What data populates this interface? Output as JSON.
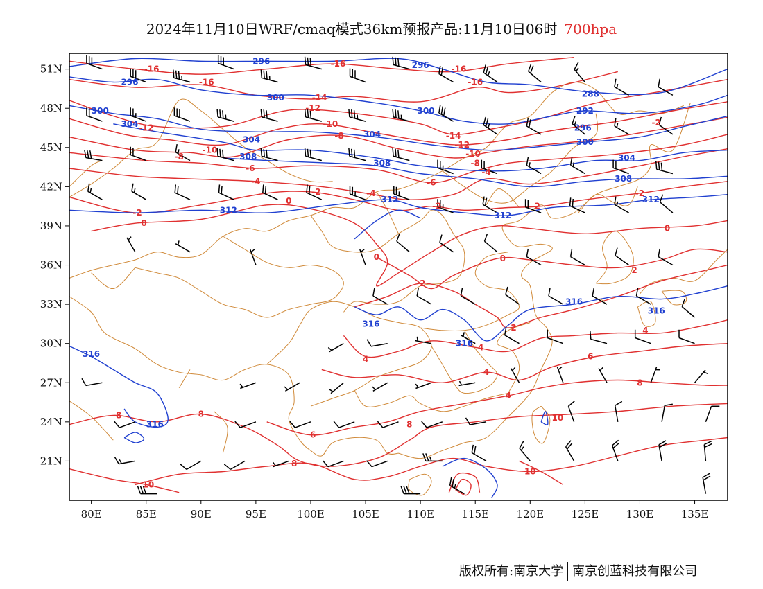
{
  "title": "2024年11月10日WRF/cmaq模式36km预报产品:11月10日06时",
  "level": "700hpa",
  "copyright": {
    "owner": "版权所有:南京大学",
    "company": "南京创蓝科技有限公司"
  },
  "colors": {
    "temperature": "#e03030",
    "geopotential": "#2040d0",
    "boundaries": "#d08a3a",
    "wind": "#000000"
  },
  "axes": {
    "lon_labels": [
      "80E",
      "85E",
      "90E",
      "95E",
      "100E",
      "105E",
      "110E",
      "115E",
      "120E",
      "125E",
      "130E",
      "135E"
    ],
    "lat_labels": [
      "51N",
      "48N",
      "45N",
      "42N",
      "39N",
      "36N",
      "33N",
      "30N",
      "27N",
      "24N",
      "21N"
    ]
  },
  "temperature_labels": [
    {
      "text": "-16",
      "lon": 85.5,
      "lat": 51.0
    },
    {
      "text": "-16",
      "lon": 90.5,
      "lat": 50.0
    },
    {
      "text": "-16",
      "lon": 102.5,
      "lat": 51.4
    },
    {
      "text": "-16",
      "lon": 113.5,
      "lat": 51.0
    },
    {
      "text": "-16",
      "lon": 115.0,
      "lat": 50.0
    },
    {
      "text": "-14",
      "lon": 100.8,
      "lat": 48.8
    },
    {
      "text": "-12",
      "lon": 100.2,
      "lat": 48.0
    },
    {
      "text": "-12",
      "lon": 85.0,
      "lat": 46.5
    },
    {
      "text": "-10",
      "lon": 101.8,
      "lat": 46.8
    },
    {
      "text": "-8",
      "lon": 102.6,
      "lat": 45.9
    },
    {
      "text": "-14",
      "lon": 113.0,
      "lat": 45.9
    },
    {
      "text": "-12",
      "lon": 113.8,
      "lat": 45.2
    },
    {
      "text": "-10",
      "lon": 114.8,
      "lat": 44.5
    },
    {
      "text": "-8",
      "lon": 115.0,
      "lat": 43.8
    },
    {
      "text": "-10",
      "lon": 90.8,
      "lat": 44.8
    },
    {
      "text": "-8",
      "lon": 88.0,
      "lat": 44.3
    },
    {
      "text": "-6",
      "lon": 94.5,
      "lat": 43.4
    },
    {
      "text": "-4",
      "lon": 95.0,
      "lat": 42.4
    },
    {
      "text": "-6",
      "lon": 111.0,
      "lat": 42.3
    },
    {
      "text": "-4",
      "lon": 116.0,
      "lat": 43.1
    },
    {
      "text": "-4",
      "lon": 105.5,
      "lat": 41.5
    },
    {
      "text": "-2",
      "lon": 100.5,
      "lat": 41.6
    },
    {
      "text": "-2",
      "lon": 84.2,
      "lat": 40.0
    },
    {
      "text": "0",
      "lon": 98.0,
      "lat": 40.9
    },
    {
      "text": "0",
      "lon": 84.8,
      "lat": 39.2
    },
    {
      "text": "-2",
      "lon": 111.5,
      "lat": 40.5
    },
    {
      "text": "-2",
      "lon": 120.5,
      "lat": 40.5
    },
    {
      "text": "-2",
      "lon": 130.0,
      "lat": 41.5
    },
    {
      "text": "-2",
      "lon": 131.5,
      "lat": 46.9
    },
    {
      "text": "0",
      "lon": 106.0,
      "lat": 36.6
    },
    {
      "text": "0",
      "lon": 117.5,
      "lat": 36.5
    },
    {
      "text": "0",
      "lon": 132.5,
      "lat": 38.8
    },
    {
      "text": "2",
      "lon": 110.2,
      "lat": 34.6
    },
    {
      "text": "2",
      "lon": 118.5,
      "lat": 31.2
    },
    {
      "text": "2",
      "lon": 129.5,
      "lat": 35.6
    },
    {
      "text": "4",
      "lon": 105.0,
      "lat": 28.8
    },
    {
      "text": "4",
      "lon": 115.5,
      "lat": 29.7
    },
    {
      "text": "4",
      "lon": 116.0,
      "lat": 27.8
    },
    {
      "text": "4",
      "lon": 118.0,
      "lat": 26.0
    },
    {
      "text": "4",
      "lon": 130.5,
      "lat": 31.0
    },
    {
      "text": "6",
      "lon": 100.2,
      "lat": 23.0
    },
    {
      "text": "6",
      "lon": 125.5,
      "lat": 29.0
    },
    {
      "text": "8",
      "lon": 82.5,
      "lat": 24.5
    },
    {
      "text": "8",
      "lon": 90.0,
      "lat": 24.6
    },
    {
      "text": "8",
      "lon": 109.0,
      "lat": 23.8
    },
    {
      "text": "8",
      "lon": 98.5,
      "lat": 20.8
    },
    {
      "text": "8",
      "lon": 130.0,
      "lat": 27.0
    },
    {
      "text": "10",
      "lon": 122.5,
      "lat": 24.3
    },
    {
      "text": "10",
      "lon": 85.2,
      "lat": 19.2
    },
    {
      "text": "10",
      "lon": 120.0,
      "lat": 20.2
    }
  ],
  "geopotential_labels": [
    {
      "text": "296",
      "lon": 95.5,
      "lat": 51.6
    },
    {
      "text": "296",
      "lon": 110.0,
      "lat": 51.3
    },
    {
      "text": "296",
      "lon": 83.5,
      "lat": 50.0
    },
    {
      "text": "300",
      "lon": 80.8,
      "lat": 47.8
    },
    {
      "text": "300",
      "lon": 96.8,
      "lat": 48.8
    },
    {
      "text": "300",
      "lon": 110.5,
      "lat": 47.8
    },
    {
      "text": "304",
      "lon": 83.5,
      "lat": 46.8
    },
    {
      "text": "304",
      "lon": 94.6,
      "lat": 45.6
    },
    {
      "text": "304",
      "lon": 105.6,
      "lat": 46.0
    },
    {
      "text": "308",
      "lon": 94.3,
      "lat": 44.3
    },
    {
      "text": "308",
      "lon": 106.5,
      "lat": 43.8
    },
    {
      "text": "288",
      "lon": 125.5,
      "lat": 49.1
    },
    {
      "text": "292",
      "lon": 125.0,
      "lat": 47.8
    },
    {
      "text": "296",
      "lon": 124.8,
      "lat": 46.5
    },
    {
      "text": "300",
      "lon": 125.0,
      "lat": 45.4
    },
    {
      "text": "304",
      "lon": 128.8,
      "lat": 44.2
    },
    {
      "text": "308",
      "lon": 128.5,
      "lat": 42.6
    },
    {
      "text": "312",
      "lon": 92.5,
      "lat": 40.2
    },
    {
      "text": "312",
      "lon": 107.2,
      "lat": 41.0
    },
    {
      "text": "312",
      "lon": 117.5,
      "lat": 39.8
    },
    {
      "text": "312",
      "lon": 131.0,
      "lat": 41.0
    },
    {
      "text": "316",
      "lon": 105.5,
      "lat": 31.5
    },
    {
      "text": "316",
      "lon": 114.0,
      "lat": 30.0
    },
    {
      "text": "316",
      "lon": 124.0,
      "lat": 33.2
    },
    {
      "text": "316",
      "lon": 131.5,
      "lat": 32.5
    },
    {
      "text": "316",
      "lon": 80.0,
      "lat": 29.2
    },
    {
      "text": "316",
      "lon": 85.8,
      "lat": 23.8
    }
  ],
  "wind_barbs": [
    {
      "lon": 81,
      "lat": 51,
      "spd": 30,
      "dir": 290
    },
    {
      "lon": 85,
      "lat": 50,
      "spd": 30,
      "dir": 290
    },
    {
      "lon": 89,
      "lat": 50,
      "spd": 35,
      "dir": 285
    },
    {
      "lon": 93,
      "lat": 51,
      "spd": 30,
      "dir": 290
    },
    {
      "lon": 97,
      "lat": 50,
      "spd": 35,
      "dir": 285
    },
    {
      "lon": 101,
      "lat": 51,
      "spd": 30,
      "dir": 285
    },
    {
      "lon": 105,
      "lat": 50,
      "spd": 30,
      "dir": 290
    },
    {
      "lon": 109,
      "lat": 51,
      "spd": 30,
      "dir": 285
    },
    {
      "lon": 113,
      "lat": 50,
      "spd": 20,
      "dir": 300
    },
    {
      "lon": 117,
      "lat": 50,
      "spd": 25,
      "dir": 305
    },
    {
      "lon": 121,
      "lat": 50,
      "spd": 20,
      "dir": 310
    },
    {
      "lon": 125,
      "lat": 50,
      "spd": 15,
      "dir": 320
    },
    {
      "lon": 129,
      "lat": 49,
      "spd": 15,
      "dir": 300
    },
    {
      "lon": 133,
      "lat": 49,
      "spd": 10,
      "dir": 300
    },
    {
      "lon": 81,
      "lat": 47,
      "spd": 20,
      "dir": 290
    },
    {
      "lon": 85,
      "lat": 47,
      "spd": 25,
      "dir": 290
    },
    {
      "lon": 89,
      "lat": 47,
      "spd": 30,
      "dir": 290
    },
    {
      "lon": 93,
      "lat": 47,
      "spd": 35,
      "dir": 285
    },
    {
      "lon": 97,
      "lat": 47,
      "spd": 30,
      "dir": 285
    },
    {
      "lon": 101,
      "lat": 47,
      "spd": 30,
      "dir": 285
    },
    {
      "lon": 105,
      "lat": 47,
      "spd": 35,
      "dir": 285
    },
    {
      "lon": 109,
      "lat": 47,
      "spd": 35,
      "dir": 285
    },
    {
      "lon": 113,
      "lat": 47,
      "spd": 30,
      "dir": 300
    },
    {
      "lon": 117,
      "lat": 46,
      "spd": 25,
      "dir": 305
    },
    {
      "lon": 121,
      "lat": 46,
      "spd": 20,
      "dir": 300
    },
    {
      "lon": 125,
      "lat": 46,
      "spd": 15,
      "dir": 310
    },
    {
      "lon": 129,
      "lat": 46,
      "spd": 15,
      "dir": 300
    },
    {
      "lon": 133,
      "lat": 46,
      "spd": 10,
      "dir": 305
    },
    {
      "lon": 81,
      "lat": 44,
      "spd": 30,
      "dir": 280
    },
    {
      "lon": 85,
      "lat": 44,
      "spd": 20,
      "dir": 290
    },
    {
      "lon": 89,
      "lat": 44,
      "spd": 15,
      "dir": 300
    },
    {
      "lon": 93,
      "lat": 44,
      "spd": 30,
      "dir": 285
    },
    {
      "lon": 97,
      "lat": 44,
      "spd": 30,
      "dir": 285
    },
    {
      "lon": 101,
      "lat": 44,
      "spd": 30,
      "dir": 285
    },
    {
      "lon": 105,
      "lat": 44,
      "spd": 30,
      "dir": 285
    },
    {
      "lon": 109,
      "lat": 44,
      "spd": 30,
      "dir": 285
    },
    {
      "lon": 113,
      "lat": 43,
      "spd": 25,
      "dir": 290
    },
    {
      "lon": 117,
      "lat": 43,
      "spd": 20,
      "dir": 290
    },
    {
      "lon": 121,
      "lat": 43,
      "spd": 15,
      "dir": 300
    },
    {
      "lon": 125,
      "lat": 43,
      "spd": 15,
      "dir": 300
    },
    {
      "lon": 129,
      "lat": 43,
      "spd": 20,
      "dir": 290
    },
    {
      "lon": 133,
      "lat": 43,
      "spd": 30,
      "dir": 285
    },
    {
      "lon": 81,
      "lat": 41,
      "spd": 15,
      "dir": 300
    },
    {
      "lon": 85,
      "lat": 41,
      "spd": 15,
      "dir": 300
    },
    {
      "lon": 89,
      "lat": 41,
      "spd": 20,
      "dir": 295
    },
    {
      "lon": 93,
      "lat": 41,
      "spd": 20,
      "dir": 295
    },
    {
      "lon": 97,
      "lat": 41,
      "spd": 20,
      "dir": 295
    },
    {
      "lon": 101,
      "lat": 41,
      "spd": 20,
      "dir": 295
    },
    {
      "lon": 105,
      "lat": 41,
      "spd": 25,
      "dir": 290
    },
    {
      "lon": 109,
      "lat": 41,
      "spd": 25,
      "dir": 290
    },
    {
      "lon": 113,
      "lat": 40,
      "spd": 25,
      "dir": 290
    },
    {
      "lon": 117,
      "lat": 40,
      "spd": 20,
      "dir": 300
    },
    {
      "lon": 121,
      "lat": 40,
      "spd": 20,
      "dir": 290
    },
    {
      "lon": 125,
      "lat": 40,
      "spd": 20,
      "dir": 295
    },
    {
      "lon": 129,
      "lat": 40,
      "spd": 15,
      "dir": 300
    },
    {
      "lon": 133,
      "lat": 40,
      "spd": 10,
      "dir": 310
    },
    {
      "lon": 84,
      "lat": 37,
      "spd": 5,
      "dir": 330
    },
    {
      "lon": 89,
      "lat": 37,
      "spd": 5,
      "dir": 300
    },
    {
      "lon": 95,
      "lat": 36,
      "spd": 5,
      "dir": 340
    },
    {
      "lon": 105,
      "lat": 36,
      "spd": 5,
      "dir": 340
    },
    {
      "lon": 109,
      "lat": 37,
      "spd": 10,
      "dir": 310
    },
    {
      "lon": 113,
      "lat": 37,
      "spd": 10,
      "dir": 305
    },
    {
      "lon": 117,
      "lat": 37,
      "spd": 10,
      "dir": 310
    },
    {
      "lon": 121,
      "lat": 36,
      "spd": 10,
      "dir": 300
    },
    {
      "lon": 125,
      "lat": 36,
      "spd": 10,
      "dir": 300
    },
    {
      "lon": 129,
      "lat": 36,
      "spd": 10,
      "dir": 305
    },
    {
      "lon": 133,
      "lat": 36,
      "spd": 10,
      "dir": 300
    },
    {
      "lon": 107,
      "lat": 33,
      "spd": 10,
      "dir": 300
    },
    {
      "lon": 111,
      "lat": 33,
      "spd": 10,
      "dir": 300
    },
    {
      "lon": 115,
      "lat": 33,
      "spd": 10,
      "dir": 300
    },
    {
      "lon": 119,
      "lat": 33,
      "spd": 10,
      "dir": 305
    },
    {
      "lon": 123,
      "lat": 33,
      "spd": 10,
      "dir": 300
    },
    {
      "lon": 127,
      "lat": 33,
      "spd": 10,
      "dir": 300
    },
    {
      "lon": 131,
      "lat": 33,
      "spd": 10,
      "dir": 300
    },
    {
      "lon": 135,
      "lat": 32,
      "spd": 10,
      "dir": 310
    },
    {
      "lon": 103,
      "lat": 30,
      "spd": 5,
      "dir": 240
    },
    {
      "lon": 107,
      "lat": 30,
      "spd": 10,
      "dir": 260
    },
    {
      "lon": 111,
      "lat": 30,
      "spd": 5,
      "dir": 280
    },
    {
      "lon": 115,
      "lat": 30,
      "spd": 5,
      "dir": 300
    },
    {
      "lon": 119,
      "lat": 30,
      "spd": 10,
      "dir": 300
    },
    {
      "lon": 123,
      "lat": 30,
      "spd": 10,
      "dir": 290
    },
    {
      "lon": 127,
      "lat": 30,
      "spd": 10,
      "dir": 285
    },
    {
      "lon": 131,
      "lat": 30,
      "spd": 10,
      "dir": 290
    },
    {
      "lon": 135,
      "lat": 30,
      "spd": 10,
      "dir": 290
    },
    {
      "lon": 81,
      "lat": 27,
      "spd": 10,
      "dir": 260
    },
    {
      "lon": 95,
      "lat": 27,
      "spd": 5,
      "dir": 250
    },
    {
      "lon": 99,
      "lat": 27,
      "spd": 5,
      "dir": 240
    },
    {
      "lon": 103,
      "lat": 27,
      "spd": 5,
      "dir": 230
    },
    {
      "lon": 107,
      "lat": 27,
      "spd": 5,
      "dir": 240
    },
    {
      "lon": 111,
      "lat": 27,
      "spd": 5,
      "dir": 250
    },
    {
      "lon": 115,
      "lat": 27,
      "spd": 5,
      "dir": 260
    },
    {
      "lon": 119,
      "lat": 27,
      "spd": 5,
      "dir": 330
    },
    {
      "lon": 123,
      "lat": 27,
      "spd": 5,
      "dir": 340
    },
    {
      "lon": 127,
      "lat": 27,
      "spd": 5,
      "dir": 330
    },
    {
      "lon": 131,
      "lat": 27,
      "spd": 5,
      "dir": 20
    },
    {
      "lon": 135,
      "lat": 27,
      "spd": 5,
      "dir": 40
    },
    {
      "lon": 84,
      "lat": 24,
      "spd": 10,
      "dir": 250
    },
    {
      "lon": 95,
      "lat": 24,
      "spd": 10,
      "dir": 250
    },
    {
      "lon": 100,
      "lat": 24,
      "spd": 10,
      "dir": 250
    },
    {
      "lon": 104,
      "lat": 24,
      "spd": 10,
      "dir": 250
    },
    {
      "lon": 108,
      "lat": 24,
      "spd": 10,
      "dir": 250
    },
    {
      "lon": 112,
      "lat": 24,
      "spd": 10,
      "dir": 250
    },
    {
      "lon": 116,
      "lat": 24,
      "spd": 10,
      "dir": 260
    },
    {
      "lon": 124,
      "lat": 24,
      "spd": 10,
      "dir": 340
    },
    {
      "lon": 128,
      "lat": 24,
      "spd": 10,
      "dir": 350
    },
    {
      "lon": 132,
      "lat": 24,
      "spd": 10,
      "dir": 10
    },
    {
      "lon": 136,
      "lat": 24,
      "spd": 10,
      "dir": 20
    },
    {
      "lon": 84,
      "lat": 21,
      "spd": 15,
      "dir": 260
    },
    {
      "lon": 90,
      "lat": 21,
      "spd": 10,
      "dir": 240
    },
    {
      "lon": 94,
      "lat": 21,
      "spd": 10,
      "dir": 240
    },
    {
      "lon": 98,
      "lat": 21,
      "spd": 5,
      "dir": 250
    },
    {
      "lon": 103,
      "lat": 21,
      "spd": 10,
      "dir": 250
    },
    {
      "lon": 107,
      "lat": 21,
      "spd": 10,
      "dir": 250
    },
    {
      "lon": 112,
      "lat": 21,
      "spd": 25,
      "dir": 270
    },
    {
      "lon": 116,
      "lat": 21,
      "spd": 20,
      "dir": 300
    },
    {
      "lon": 120,
      "lat": 21,
      "spd": 15,
      "dir": 320
    },
    {
      "lon": 124,
      "lat": 21,
      "spd": 20,
      "dir": 330
    },
    {
      "lon": 128,
      "lat": 21,
      "spd": 20,
      "dir": 340
    },
    {
      "lon": 132,
      "lat": 21,
      "spd": 20,
      "dir": 350
    },
    {
      "lon": 136,
      "lat": 21,
      "spd": 20,
      "dir": 355
    },
    {
      "lon": 86,
      "lat": 18.5,
      "spd": 30,
      "dir": 270
    },
    {
      "lon": 110,
      "lat": 18.5,
      "spd": 30,
      "dir": 270
    },
    {
      "lon": 114,
      "lat": 18.5,
      "spd": 25,
      "dir": 300
    },
    {
      "lon": 136,
      "lat": 18.5,
      "spd": 20,
      "dir": 350
    }
  ]
}
